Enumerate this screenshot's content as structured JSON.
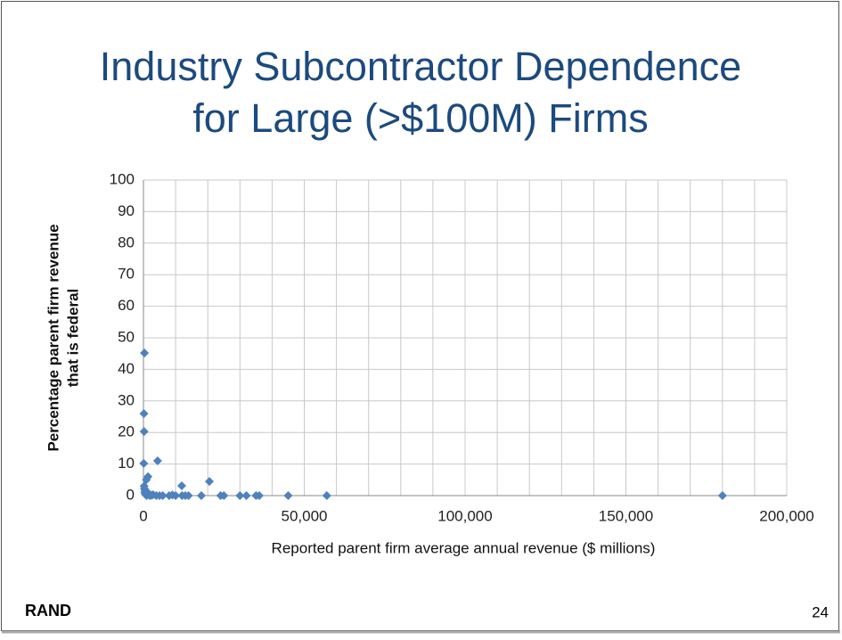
{
  "slide": {
    "brand": "RAND",
    "page_number": 24
  },
  "chart_data": {
    "type": "scatter",
    "title": [
      "Industry Subcontractor Dependence",
      "for Large (>$100M) Firms"
    ],
    "x_label": "Reported parent firm average annual revenue ($ millions)",
    "y_label": [
      "Percentage parent firm revenue",
      "that is federal"
    ],
    "color": "#4f81bd",
    "grid": true,
    "xlim": [
      0,
      200000
    ],
    "ylim": [
      0,
      100
    ],
    "xticks": [
      0,
      {
        "value": 50000,
        "label": "50,000"
      },
      {
        "value": 100000,
        "label": "100,000"
      },
      {
        "value": 150000,
        "label": "150,000"
      },
      {
        "value": 200000,
        "label": "200,000"
      }
    ],
    "x_minor_grid": [
      10000,
      20000,
      30000,
      40000,
      60000,
      70000,
      80000,
      90000,
      110000,
      120000,
      130000,
      140000,
      160000,
      170000,
      180000,
      190000
    ],
    "yticks": [
      0,
      10,
      20,
      30,
      40,
      50,
      60,
      70,
      80,
      90,
      100
    ],
    "x": [
      300,
      150,
      200,
      100,
      4400,
      20500,
      11900,
      1400,
      200,
      500,
      900,
      300,
      700,
      1100,
      600,
      1000,
      2000,
      3000,
      4000,
      5000,
      6000,
      8000,
      9000,
      10000,
      12000,
      13000,
      14000,
      18000,
      24000,
      25000,
      30000,
      32000,
      35000,
      36000,
      45000,
      57000,
      180000,
      1500,
      2500,
      400
    ],
    "y": [
      45.2,
      26,
      20.3,
      10.2,
      11,
      4.5,
      3.1,
      6,
      3,
      1.7,
      5,
      2.2,
      0.8,
      1.2,
      0.4,
      0,
      0,
      0.3,
      0,
      0,
      0,
      0,
      0.2,
      0,
      0,
      0,
      0,
      0,
      0,
      0,
      0,
      0,
      0,
      0,
      0,
      0,
      0,
      0.6,
      0.1,
      1
    ]
  }
}
